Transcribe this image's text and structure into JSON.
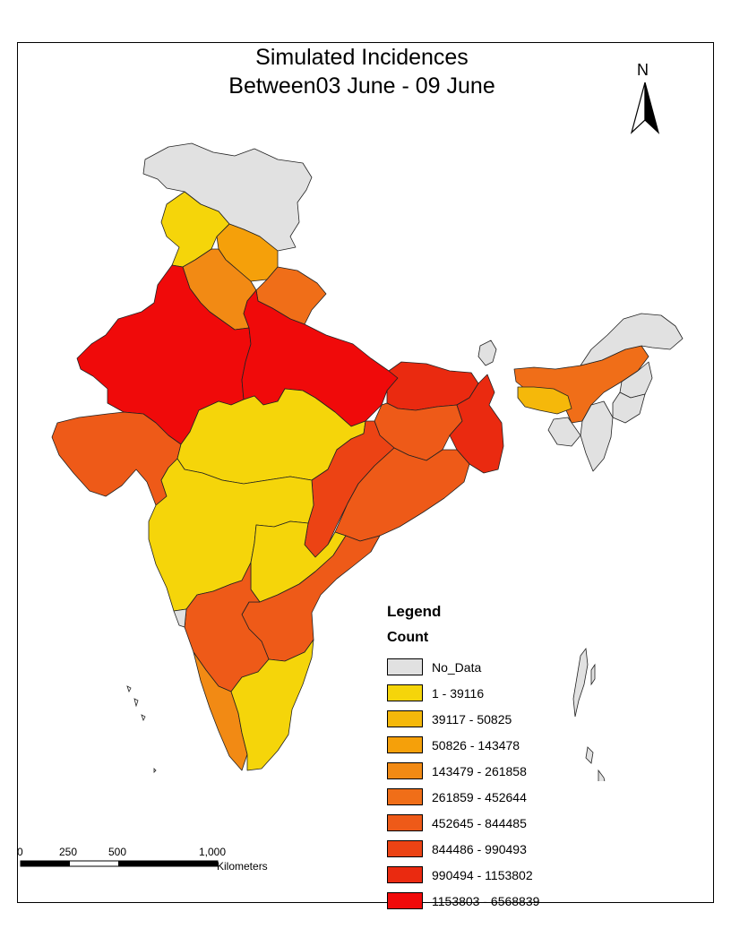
{
  "title": {
    "line1": "Simulated Incidences",
    "line2": "Between03 June - 09 June"
  },
  "north_arrow": {
    "label": "N"
  },
  "legend": {
    "title": "Legend",
    "subtitle": "Count",
    "items": [
      {
        "label": "No_Data",
        "color": "#e1e1e1"
      },
      {
        "label": "1 - 39116",
        "color": "#f5d50a"
      },
      {
        "label": "39117 - 50825",
        "color": "#f5b80a"
      },
      {
        "label": "50826 - 143478",
        "color": "#f5a00a"
      },
      {
        "label": "143479 - 261858",
        "color": "#f28a14"
      },
      {
        "label": "261859 - 452644",
        "color": "#f06e18"
      },
      {
        "label": "452645 - 844485",
        "color": "#ee5a18"
      },
      {
        "label": "844486 - 990493",
        "color": "#ec4314"
      },
      {
        "label": "990494 - 1153802",
        "color": "#ea2a10"
      },
      {
        "label": "1153803 - 6568839",
        "color": "#f00a0a"
      }
    ]
  },
  "scale_bar": {
    "ticks": [
      "0",
      "250",
      "500",
      "1,000"
    ],
    "units": "Kilometers"
  },
  "regions": [
    {
      "name": "jammu-kashmir",
      "class_index": 0
    },
    {
      "name": "himachal-pradesh",
      "class_index": 3
    },
    {
      "name": "punjab",
      "class_index": 1
    },
    {
      "name": "uttarakhand",
      "class_index": 5
    },
    {
      "name": "haryana",
      "class_index": 4
    },
    {
      "name": "rajasthan",
      "class_index": 9
    },
    {
      "name": "uttar-pradesh",
      "class_index": 9
    },
    {
      "name": "gujarat",
      "class_index": 6
    },
    {
      "name": "madhya-pradesh",
      "class_index": 1
    },
    {
      "name": "bihar",
      "class_index": 8
    },
    {
      "name": "jharkhand",
      "class_index": 6
    },
    {
      "name": "west-bengal",
      "class_index": 8
    },
    {
      "name": "chhattisgarh",
      "class_index": 7
    },
    {
      "name": "odisha",
      "class_index": 6
    },
    {
      "name": "maharashtra",
      "class_index": 1
    },
    {
      "name": "telangana",
      "class_index": 1
    },
    {
      "name": "andhra-pradesh",
      "class_index": 6
    },
    {
      "name": "karnataka",
      "class_index": 6
    },
    {
      "name": "goa",
      "class_index": 0
    },
    {
      "name": "kerala",
      "class_index": 4
    },
    {
      "name": "tamil-nadu",
      "class_index": 1
    },
    {
      "name": "sikkim",
      "class_index": 0
    },
    {
      "name": "assam",
      "class_index": 5
    },
    {
      "name": "meghalaya",
      "class_index": 2
    },
    {
      "name": "arunachal-pradesh",
      "class_index": 0
    },
    {
      "name": "nagaland",
      "class_index": 0
    },
    {
      "name": "manipur",
      "class_index": 0
    },
    {
      "name": "mizoram",
      "class_index": 0
    },
    {
      "name": "tripura",
      "class_index": 0
    },
    {
      "name": "andaman-nicobar",
      "class_index": 0
    }
  ]
}
